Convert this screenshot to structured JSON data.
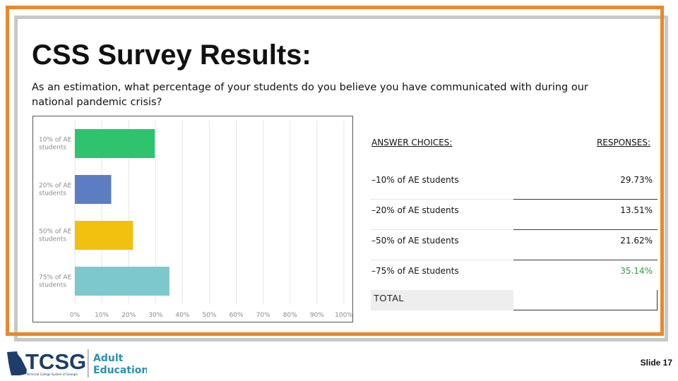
{
  "title": "CSS Survey Results:",
  "question": "As an estimation, what percentage of your students do you believe you have communicated with during our national pandemic crisis?",
  "table": {
    "header_choice": "ANSWER CHOICES:",
    "header_responses": "RESPONSES:",
    "rows": [
      {
        "label": "–10% of AE students",
        "value": "29.73%"
      },
      {
        "label": "–20% of AE students",
        "value": "13.51%"
      },
      {
        "label": "–50% of AE students",
        "value": "21.62%"
      },
      {
        "label": "–75% of AE students",
        "value": "35.14%"
      }
    ],
    "total_label": "TOTAL",
    "highlight_color": "#2e9a44"
  },
  "chart_data": {
    "type": "bar",
    "orientation": "horizontal",
    "categories": [
      [
        "10% of AE",
        "students"
      ],
      [
        "20% of AE",
        "students"
      ],
      [
        "50% of AE",
        "students"
      ],
      [
        "75% of AE",
        "students"
      ]
    ],
    "values": [
      29.73,
      13.51,
      21.62,
      35.14
    ],
    "colors": [
      "#2ec46d",
      "#5b7ec3",
      "#f2c00e",
      "#7cc8cd"
    ],
    "xlim": [
      0,
      100
    ],
    "xticks": [
      "0%",
      "10%",
      "20%",
      "30%",
      "40%",
      "50%",
      "60%",
      "70%",
      "80%",
      "90%",
      "100%"
    ],
    "grid": true
  },
  "logo": {
    "acronym": "TCSG",
    "subtitle": "Technical College System of Georgia",
    "line1": "Adult",
    "line2": "Education",
    "navy": "#1e3d6b",
    "teal": "#2a8fb0"
  },
  "slide_number": "Slide 17"
}
